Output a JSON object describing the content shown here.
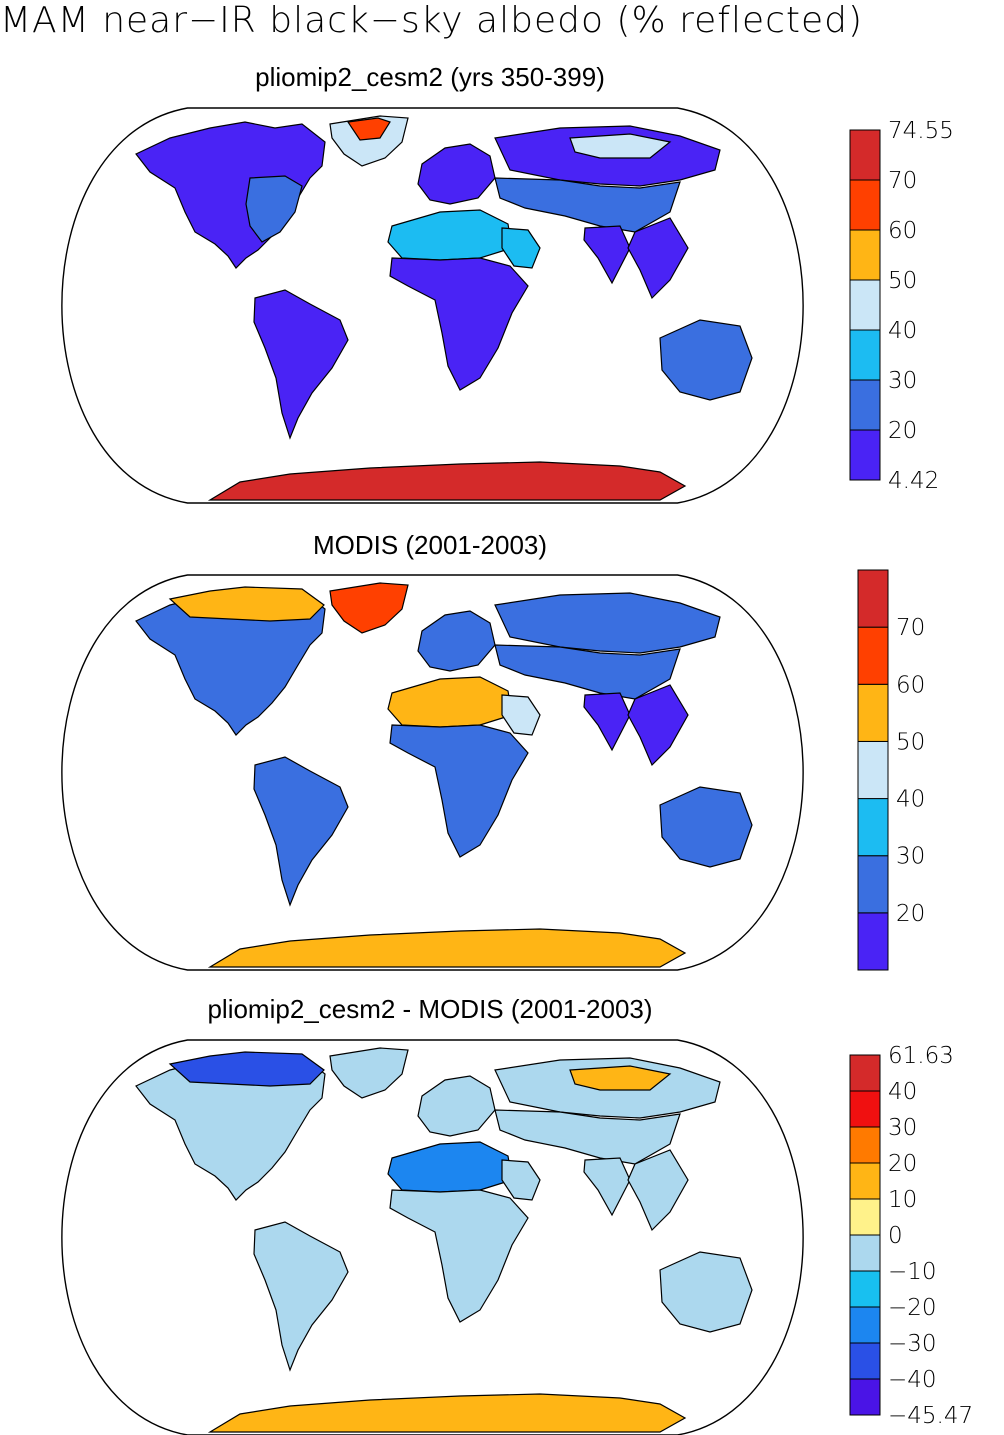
{
  "page_title": "MAM near−IR black−sky albedo (% reflected)",
  "chart_data": [
    {
      "type": "heatmap",
      "title": "pliomip2_cesm2 (yrs 350-399)",
      "projection": "Robinson",
      "colorbar": {
        "tick_labels": [
          "74.55",
          "70",
          "60",
          "50",
          "40",
          "30",
          "20",
          "4.42"
        ],
        "boundaries": [
          4.42,
          20,
          30,
          40,
          50,
          60,
          70,
          74.55
        ],
        "colors": [
          "#4a23f5",
          "#3a6fe0",
          "#1cbcf2",
          "#cbe6f7",
          "#ffb515",
          "#ff4000",
          "#d42a2a"
        ]
      },
      "regions": [
        {
          "region": "North America",
          "bin": 0
        },
        {
          "region": "Eastern North America",
          "bin": 1
        },
        {
          "region": "Greenland",
          "bin": 3
        },
        {
          "region": "Greenland summit",
          "bin": 5
        },
        {
          "region": "South America",
          "bin": 0
        },
        {
          "region": "Sahara",
          "bin": 2
        },
        {
          "region": "Arabia",
          "bin": 2
        },
        {
          "region": "Sub-Saharan Africa",
          "bin": 0
        },
        {
          "region": "Europe",
          "bin": 0
        },
        {
          "region": "Siberia",
          "bin": 0
        },
        {
          "region": "Central Asia",
          "bin": 1
        },
        {
          "region": "Northern Siberia",
          "bin": 3
        },
        {
          "region": "India",
          "bin": 0
        },
        {
          "region": "Southeast Asia",
          "bin": 0
        },
        {
          "region": "Australia",
          "bin": 1
        },
        {
          "region": "Antarctica",
          "bin": 6
        }
      ]
    },
    {
      "type": "heatmap",
      "title": "MODIS (2001-2003)",
      "projection": "Robinson",
      "colorbar": {
        "tick_labels": [
          "70",
          "60",
          "50",
          "40",
          "30",
          "20"
        ],
        "boundaries": [
          20,
          30,
          40,
          50,
          60,
          70
        ],
        "colors": [
          "#4a23f5",
          "#3a6fe0",
          "#1cbcf2",
          "#cbe6f7",
          "#ffb515",
          "#ff4000",
          "#d42a2a"
        ]
      },
      "regions": [
        {
          "region": "North America",
          "bin": 1
        },
        {
          "region": "Northern Canada",
          "bin": 4
        },
        {
          "region": "Greenland",
          "bin": 5
        },
        {
          "region": "South America",
          "bin": 1
        },
        {
          "region": "Sahara",
          "bin": 4
        },
        {
          "region": "Arabia",
          "bin": 3
        },
        {
          "region": "Sub-Saharan Africa",
          "bin": 1
        },
        {
          "region": "Europe",
          "bin": 1
        },
        {
          "region": "Siberia",
          "bin": 1
        },
        {
          "region": "Central Asia",
          "bin": 1
        },
        {
          "region": "India",
          "bin": 0
        },
        {
          "region": "Southeast Asia",
          "bin": 0
        },
        {
          "region": "Australia",
          "bin": 1
        },
        {
          "region": "Antarctica",
          "bin": 4
        }
      ]
    },
    {
      "type": "heatmap",
      "title": "pliomip2_cesm2 - MODIS (2001-2003)",
      "projection": "Robinson",
      "colorbar": {
        "tick_labels": [
          "61.63",
          "40",
          "30",
          "20",
          "10",
          "0",
          "−10",
          "−20",
          "−30",
          "−40",
          "−45.47"
        ],
        "boundaries": [
          -45.47,
          -40,
          -30,
          -20,
          -10,
          0,
          10,
          20,
          30,
          40,
          61.63
        ],
        "colors": [
          "#4a14e6",
          "#2a50e6",
          "#1c86f0",
          "#18c0f0",
          "#acd8ee",
          "#fff28a",
          "#ffb515",
          "#ff7a00",
          "#f01010",
          "#d42a2a"
        ]
      },
      "regions": [
        {
          "region": "North America",
          "bin": 4
        },
        {
          "region": "Northern Canada",
          "bin": 1
        },
        {
          "region": "Greenland",
          "bin": 4
        },
        {
          "region": "South America",
          "bin": 4
        },
        {
          "region": "Sahara",
          "bin": 2
        },
        {
          "region": "Arabia",
          "bin": 4
        },
        {
          "region": "Sub-Saharan Africa",
          "bin": 4
        },
        {
          "region": "Europe",
          "bin": 4
        },
        {
          "region": "Siberia",
          "bin": 4
        },
        {
          "region": "Northern Siberia",
          "bin": 6
        },
        {
          "region": "Central Asia",
          "bin": 4
        },
        {
          "region": "India",
          "bin": 4
        },
        {
          "region": "Southeast Asia",
          "bin": 4
        },
        {
          "region": "Australia",
          "bin": 4
        },
        {
          "region": "Antarctica",
          "bin": 6
        }
      ]
    }
  ]
}
